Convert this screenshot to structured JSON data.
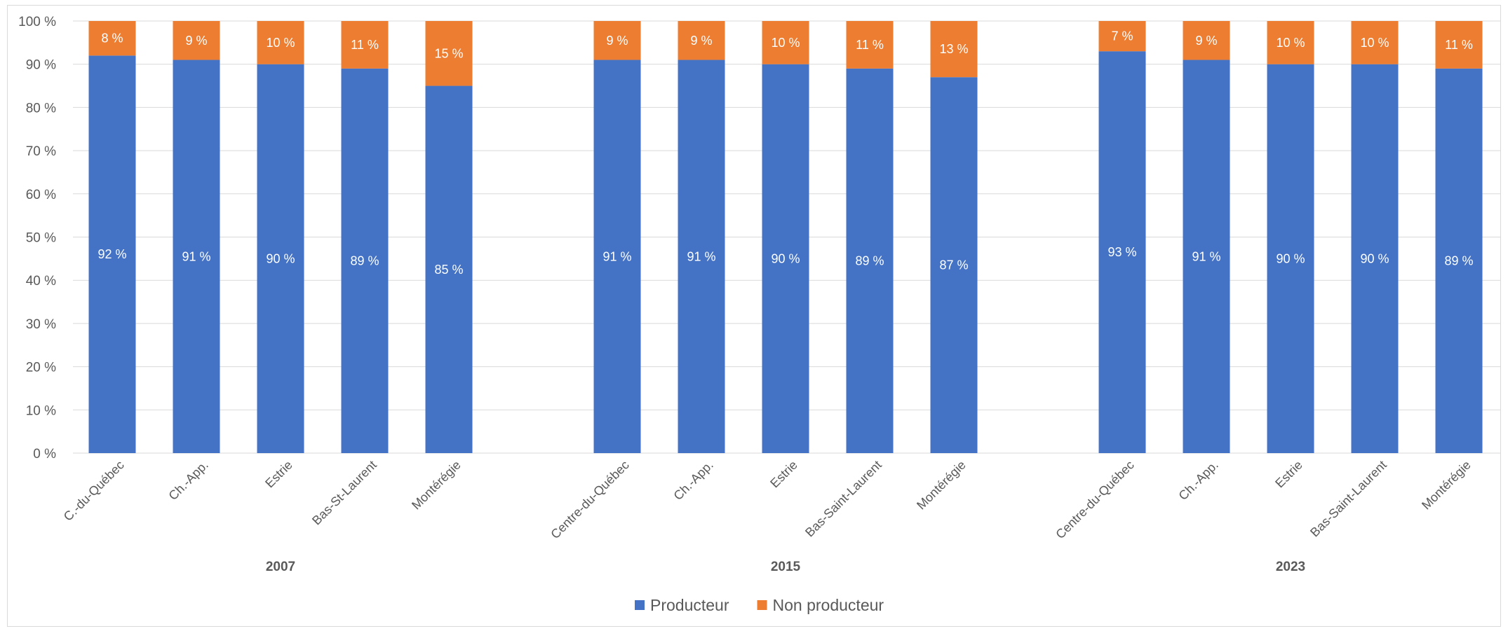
{
  "chart_data": {
    "type": "bar",
    "stacked": true,
    "percent_stacked": true,
    "title": "",
    "xlabel": "",
    "ylabel": "",
    "ylim": [
      0,
      100
    ],
    "y_ticks": [
      "0 %",
      "10 %",
      "20 %",
      "30 %",
      "40 %",
      "50 %",
      "60 %",
      "70 %",
      "80 %",
      "90 %",
      "100 %"
    ],
    "grid": true,
    "legend_position": "bottom",
    "groups": [
      {
        "label": "2007",
        "categories": [
          "C.-du-Québec",
          "Ch.-App.",
          "Estrie",
          "Bas-St-Laurent",
          "Montérégie"
        ],
        "producteur": [
          92,
          91,
          90,
          89,
          85
        ],
        "non_producteur": [
          8,
          9,
          10,
          11,
          15
        ],
        "producteur_labels": [
          "92 %",
          "91 %",
          "90 %",
          "89 %",
          "85 %"
        ],
        "non_producteur_labels": [
          "8 %",
          "9 %",
          "10 %",
          "11 %",
          "15 %"
        ]
      },
      {
        "label": "2015",
        "categories": [
          "Centre-du-Québec",
          "Ch.-App.",
          "Estrie",
          "Bas-Saint-Laurent",
          "Montérégie"
        ],
        "producteur": [
          91,
          91,
          90,
          89,
          87
        ],
        "non_producteur": [
          9,
          9,
          10,
          11,
          13
        ],
        "producteur_labels": [
          "91 %",
          "91 %",
          "90 %",
          "89 %",
          "87 %"
        ],
        "non_producteur_labels": [
          "9 %",
          "9 %",
          "10 %",
          "11 %",
          "13 %"
        ]
      },
      {
        "label": "2023",
        "categories": [
          "Centre-du-Québec",
          "Ch.-App.",
          "Estrie",
          "Bas-Saint-Laurent",
          "Montérégie"
        ],
        "producteur": [
          93,
          91,
          90,
          90,
          89
        ],
        "non_producteur": [
          7,
          9,
          10,
          10,
          11
        ],
        "producteur_labels": [
          "93 %",
          "91 %",
          "90 %",
          "90 %",
          "89 %"
        ],
        "non_producteur_labels": [
          "7 %",
          "9 %",
          "10 %",
          "10 %",
          "11 %"
        ]
      }
    ],
    "series": [
      {
        "key": "producteur",
        "name": "Producteur",
        "color": "#4472c4"
      },
      {
        "key": "non_producteur",
        "name": "Non producteur",
        "color": "#ed7d31"
      }
    ]
  },
  "colors": {
    "gridline": "#d9d9d9",
    "axis_text": "#595959",
    "data_label": "#ffffff"
  }
}
